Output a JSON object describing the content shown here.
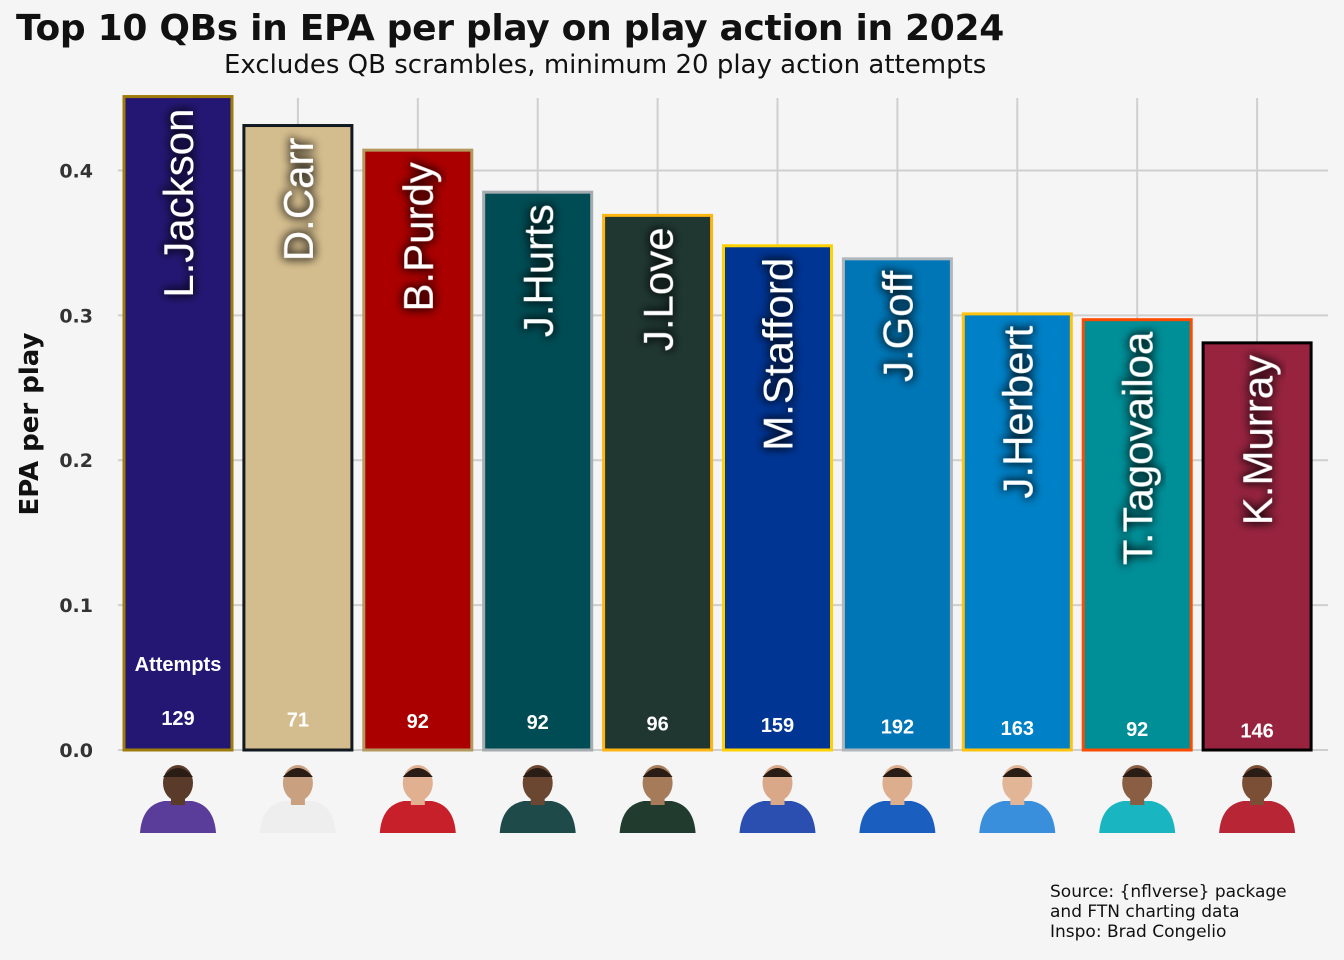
{
  "chart_data": {
    "type": "bar",
    "title": "Top 10 QBs in EPA per play on play action in 2024",
    "subtitle": "Excludes QB scrambles, minimum 20 play action attempts",
    "ylabel": "EPA per play",
    "ylim": [
      0,
      0.45
    ],
    "yticks": [
      "0.0",
      "0.1",
      "0.2",
      "0.3",
      "0.4"
    ],
    "attempts_label": "Attempts",
    "grid": true,
    "caption": [
      "Source: {nflverse} package",
      "and FTN charting data",
      "Inspo: Brad Congelio"
    ],
    "bars": [
      {
        "name": "L.Jackson",
        "value": 0.451,
        "attempts": "129",
        "fill": "#241773",
        "border": "#9E7C0C",
        "jersey": "#5a3c9a",
        "skin": "#5a3a28"
      },
      {
        "name": "D.Carr",
        "value": 0.431,
        "attempts": "71",
        "fill": "#D3BC8D",
        "border": "#101820",
        "jersey": "#eeeeee",
        "skin": "#c9a080"
      },
      {
        "name": "B.Purdy",
        "value": 0.414,
        "attempts": "92",
        "fill": "#AA0000",
        "border": "#B3995D",
        "jersey": "#c8202a",
        "skin": "#e0b090"
      },
      {
        "name": "J.Hurts",
        "value": 0.385,
        "attempts": "92",
        "fill": "#004C54",
        "border": "#A5ACAF",
        "jersey": "#1f4a4a",
        "skin": "#6b4630"
      },
      {
        "name": "J.Love",
        "value": 0.369,
        "attempts": "96",
        "fill": "#203731",
        "border": "#FFB612",
        "jersey": "#213b2e",
        "skin": "#a57b5a"
      },
      {
        "name": "M.Stafford",
        "value": 0.348,
        "attempts": "159",
        "fill": "#003594",
        "border": "#FFD100",
        "jersey": "#2a4fb0",
        "skin": "#d8a888"
      },
      {
        "name": "J.Goff",
        "value": 0.339,
        "attempts": "192",
        "fill": "#0076B6",
        "border": "#B0B7BC",
        "jersey": "#1a5fc0",
        "skin": "#dcae8e"
      },
      {
        "name": "J.Herbert",
        "value": 0.301,
        "attempts": "163",
        "fill": "#0080C6",
        "border": "#FFC20E",
        "jersey": "#3a8fdc",
        "skin": "#e2b596"
      },
      {
        "name": "T.Tagovailoa",
        "value": 0.297,
        "attempts": "92",
        "fill": "#008E97",
        "border": "#FC4C02",
        "jersey": "#19b6c2",
        "skin": "#8a5e42"
      },
      {
        "name": "K.Murray",
        "value": 0.281,
        "attempts": "146",
        "fill": "#97233F",
        "border": "#000000",
        "jersey": "#b82534",
        "skin": "#7a4f36"
      }
    ]
  }
}
